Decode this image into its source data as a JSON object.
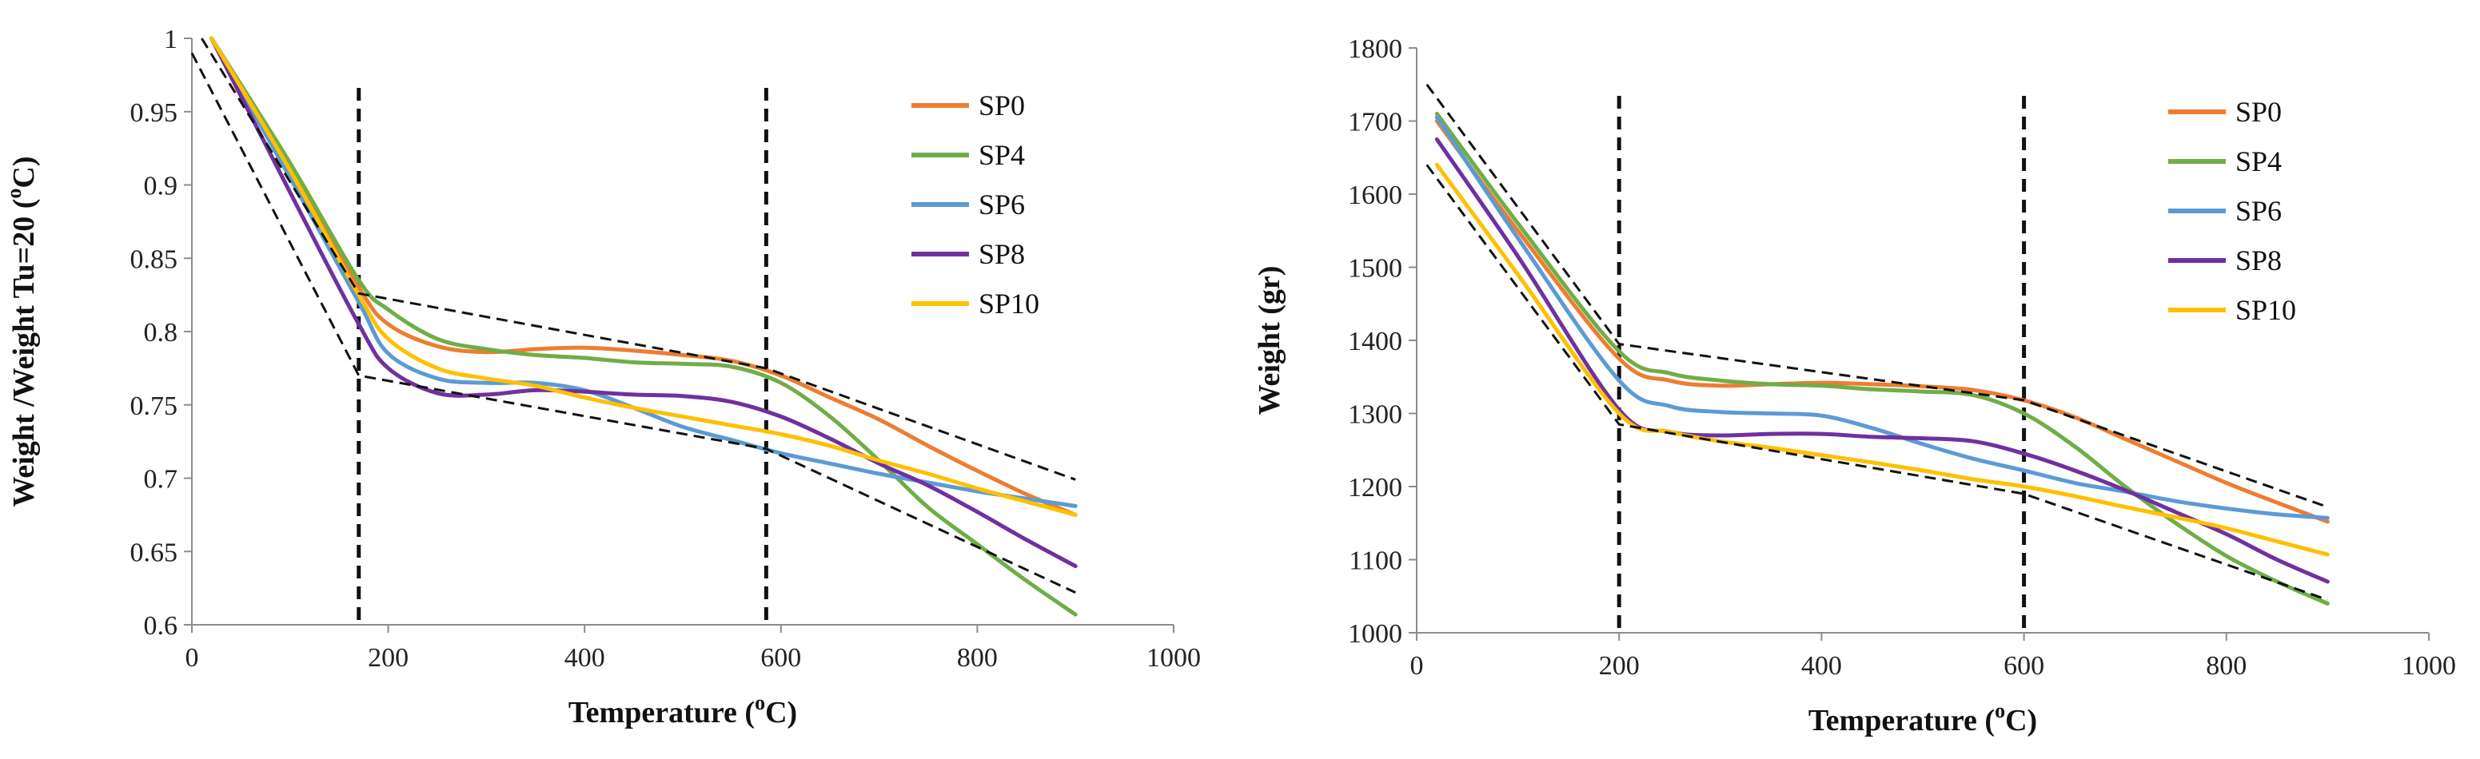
{
  "chart_data": [
    {
      "type": "line",
      "title": "",
      "xlabel": "Temperature (oC)",
      "xlabel_parts": [
        "Temperature (",
        "o",
        "C)"
      ],
      "ylabel": "Weight /Weight Tu=20 (oC)",
      "ylabel_parts": [
        "Weight /Weight Tu=20 (",
        "o",
        "C)"
      ],
      "xlim": [
        0,
        1000
      ],
      "ylim": [
        0.6,
        1.0
      ],
      "xticks": [
        0,
        200,
        400,
        600,
        800,
        1000
      ],
      "xtick_labels": [
        "0",
        "200",
        "400",
        "600",
        "800",
        "1000"
      ],
      "yticks": [
        0.6,
        0.65,
        0.7,
        0.75,
        0.8,
        0.85,
        0.9,
        0.95,
        1.0
      ],
      "ytick_labels": [
        "0.6",
        "0.65",
        "0.7",
        "0.75",
        "0.8",
        "0.85",
        "0.9",
        "0.95",
        "1"
      ],
      "grid": false,
      "legend_position": "top-right",
      "series": [
        {
          "name": "SP0",
          "color": "#ED7D31",
          "x": [
            20,
            100,
            170,
            200,
            250,
            300,
            350,
            400,
            450,
            500,
            550,
            600,
            650,
            700,
            750,
            800,
            850,
            900
          ],
          "y": [
            1.0,
            0.91,
            0.83,
            0.805,
            0.79,
            0.786,
            0.788,
            0.789,
            0.787,
            0.784,
            0.78,
            0.77,
            0.755,
            0.74,
            0.722,
            0.705,
            0.689,
            0.675
          ]
        },
        {
          "name": "SP4",
          "color": "#70AD47",
          "x": [
            20,
            100,
            170,
            200,
            250,
            300,
            350,
            400,
            450,
            500,
            550,
            600,
            650,
            700,
            750,
            800,
            850,
            900
          ],
          "y": [
            1.0,
            0.915,
            0.835,
            0.815,
            0.795,
            0.788,
            0.784,
            0.782,
            0.779,
            0.778,
            0.776,
            0.765,
            0.742,
            0.712,
            0.68,
            0.655,
            0.63,
            0.607
          ]
        },
        {
          "name": "SP6",
          "color": "#5B9BD5",
          "x": [
            20,
            100,
            170,
            200,
            250,
            300,
            350,
            400,
            450,
            500,
            550,
            600,
            650,
            700,
            750,
            800,
            850,
            900
          ],
          "y": [
            1.0,
            0.905,
            0.82,
            0.785,
            0.768,
            0.765,
            0.765,
            0.76,
            0.748,
            0.735,
            0.726,
            0.717,
            0.71,
            0.703,
            0.697,
            0.691,
            0.686,
            0.681
          ]
        },
        {
          "name": "SP8",
          "color": "#7030A0",
          "x": [
            20,
            100,
            170,
            200,
            250,
            300,
            350,
            400,
            450,
            500,
            550,
            600,
            650,
            700,
            750,
            800,
            850,
            900
          ],
          "y": [
            1.0,
            0.895,
            0.805,
            0.775,
            0.758,
            0.757,
            0.76,
            0.759,
            0.757,
            0.756,
            0.752,
            0.742,
            0.727,
            0.71,
            0.695,
            0.677,
            0.658,
            0.64
          ]
        },
        {
          "name": "SP10",
          "color": "#FFC000",
          "x": [
            20,
            100,
            170,
            200,
            250,
            300,
            350,
            400,
            450,
            500,
            550,
            600,
            650,
            700,
            750,
            800,
            850,
            900
          ],
          "y": [
            1.0,
            0.91,
            0.825,
            0.795,
            0.775,
            0.768,
            0.763,
            0.755,
            0.748,
            0.742,
            0.736,
            0.73,
            0.722,
            0.712,
            0.703,
            0.693,
            0.684,
            0.675
          ]
        }
      ],
      "vertical_markers": [
        170,
        585
      ],
      "trend_lines": [
        {
          "x": [
            10,
            170,
            585,
            900
          ],
          "y": [
            1.0,
            0.826,
            0.775,
            0.699
          ]
        },
        {
          "x": [
            0,
            170,
            585,
            900
          ],
          "y": [
            0.99,
            0.77,
            0.72,
            0.622
          ]
        }
      ]
    },
    {
      "type": "line",
      "title": "",
      "xlabel": "Temperature (oC)",
      "xlabel_parts": [
        "Temperature (",
        "o",
        "C)"
      ],
      "ylabel": "Weight (gr)",
      "ylabel_parts": [
        "Weight (gr)",
        "",
        ""
      ],
      "xlim": [
        0,
        1000
      ],
      "ylim": [
        1000,
        1800
      ],
      "xticks": [
        0,
        200,
        400,
        600,
        800,
        1000
      ],
      "xtick_labels": [
        "0",
        "200",
        "400",
        "600",
        "800",
        "1000"
      ],
      "yticks": [
        1000,
        1100,
        1200,
        1300,
        1400,
        1500,
        1600,
        1700,
        1800
      ],
      "ytick_labels": [
        "1000",
        "1100",
        "1200",
        "1300",
        "1400",
        "1500",
        "1600",
        "1700",
        "1800"
      ],
      "grid": false,
      "legend_position": "top-right",
      "series": [
        {
          "name": "SP0",
          "color": "#ED7D31",
          "x": [
            20,
            100,
            200,
            250,
            300,
            350,
            400,
            450,
            500,
            550,
            600,
            650,
            700,
            750,
            800,
            850,
            900
          ],
          "y": [
            1700,
            1550,
            1375,
            1345,
            1338,
            1340,
            1342,
            1340,
            1337,
            1332,
            1318,
            1295,
            1265,
            1235,
            1205,
            1178,
            1152
          ]
        },
        {
          "name": "SP4",
          "color": "#70AD47",
          "x": [
            20,
            100,
            200,
            250,
            300,
            350,
            400,
            450,
            500,
            550,
            600,
            650,
            700,
            750,
            800,
            850,
            900
          ],
          "y": [
            1710,
            1560,
            1385,
            1355,
            1345,
            1340,
            1338,
            1333,
            1330,
            1325,
            1300,
            1255,
            1200,
            1150,
            1105,
            1070,
            1040
          ]
        },
        {
          "name": "SP6",
          "color": "#5B9BD5",
          "x": [
            20,
            100,
            200,
            250,
            300,
            350,
            400,
            450,
            500,
            550,
            600,
            650,
            700,
            750,
            800,
            850,
            900
          ],
          "y": [
            1705,
            1540,
            1345,
            1310,
            1302,
            1300,
            1297,
            1280,
            1258,
            1238,
            1222,
            1205,
            1193,
            1180,
            1170,
            1162,
            1157
          ]
        },
        {
          "name": "SP8",
          "color": "#7030A0",
          "x": [
            20,
            100,
            200,
            250,
            300,
            350,
            400,
            450,
            500,
            550,
            600,
            650,
            700,
            750,
            800,
            850,
            900
          ],
          "y": [
            1675,
            1515,
            1305,
            1275,
            1270,
            1272,
            1272,
            1268,
            1266,
            1262,
            1245,
            1222,
            1195,
            1165,
            1135,
            1100,
            1070
          ]
        },
        {
          "name": "SP10",
          "color": "#FFC000",
          "x": [
            20,
            100,
            200,
            250,
            300,
            350,
            400,
            450,
            500,
            550,
            600,
            650,
            700,
            750,
            800,
            850,
            900
          ],
          "y": [
            1640,
            1490,
            1300,
            1275,
            1262,
            1253,
            1243,
            1233,
            1222,
            1210,
            1200,
            1187,
            1172,
            1158,
            1143,
            1125,
            1107
          ]
        }
      ],
      "vertical_markers": [
        200,
        600
      ],
      "trend_lines": [
        {
          "x": [
            10,
            200,
            600,
            900
          ],
          "y": [
            1750,
            1395,
            1318,
            1172
          ]
        },
        {
          "x": [
            10,
            200,
            600,
            900
          ],
          "y": [
            1640,
            1285,
            1190,
            1045
          ]
        }
      ]
    }
  ]
}
